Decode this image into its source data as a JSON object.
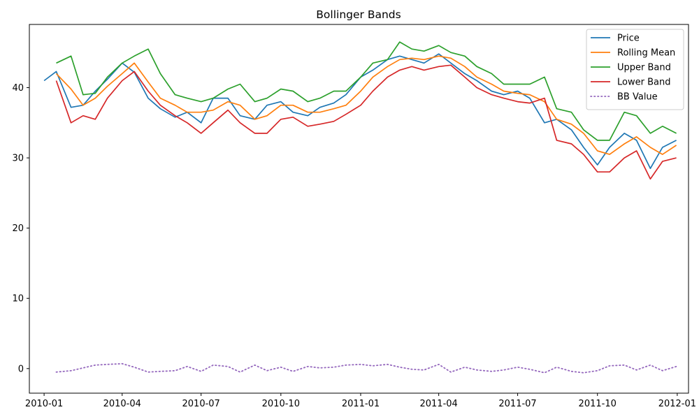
{
  "chart_data": {
    "type": "line",
    "title": "Bollinger Bands",
    "xlabel": "",
    "ylabel": "",
    "xlim": [
      "2009-12-15",
      "2012-01-14"
    ],
    "ylim": [
      -3.5,
      49
    ],
    "x_ticks": [
      "2010-01",
      "2010-04",
      "2010-07",
      "2010-10",
      "2011-01",
      "2011-04",
      "2011-07",
      "2011-10",
      "2012-01"
    ],
    "y_ticks": [
      0,
      10,
      20,
      30,
      40
    ],
    "grid": false,
    "legend": "top-right",
    "x": [
      "2010-01-01",
      "2010-01-15",
      "2010-02-01",
      "2010-02-15",
      "2010-03-01",
      "2010-03-15",
      "2010-04-01",
      "2010-04-15",
      "2010-05-01",
      "2010-05-15",
      "2010-06-01",
      "2010-06-15",
      "2010-07-01",
      "2010-07-15",
      "2010-08-01",
      "2010-08-15",
      "2010-09-01",
      "2010-09-15",
      "2010-10-01",
      "2010-10-15",
      "2010-11-01",
      "2010-11-15",
      "2010-12-01",
      "2010-12-15",
      "2011-01-01",
      "2011-01-15",
      "2011-02-01",
      "2011-02-15",
      "2011-03-01",
      "2011-03-15",
      "2011-04-01",
      "2011-04-15",
      "2011-05-01",
      "2011-05-15",
      "2011-06-01",
      "2011-06-15",
      "2011-07-01",
      "2011-07-15",
      "2011-08-01",
      "2011-08-15",
      "2011-09-01",
      "2011-09-15",
      "2011-10-01",
      "2011-10-15",
      "2011-11-01",
      "2011-11-15",
      "2011-12-01",
      "2011-12-15",
      "2011-12-31"
    ],
    "series": [
      {
        "name": "Price",
        "color": "#1f77b4",
        "style": "solid",
        "values": [
          41.0,
          42.3,
          37.2,
          37.5,
          39.5,
          41.2,
          43.5,
          42.2,
          38.5,
          37.0,
          35.8,
          36.5,
          35.0,
          38.5,
          38.5,
          36.0,
          35.5,
          37.5,
          38.0,
          36.5,
          36.0,
          37.2,
          37.8,
          39.0,
          41.5,
          42.5,
          44.0,
          44.5,
          44.0,
          43.5,
          44.8,
          43.5,
          42.0,
          41.0,
          39.5,
          39.0,
          39.5,
          38.5,
          35.0,
          35.5,
          34.0,
          31.5,
          29.0,
          31.5,
          33.5,
          32.5,
          28.5,
          31.5,
          32.5
        ]
      },
      {
        "name": "Rolling Mean",
        "color": "#ff7f0e",
        "style": "solid",
        "values": [
          null,
          42.0,
          39.8,
          37.5,
          38.5,
          40.2,
          42.0,
          43.5,
          40.8,
          38.5,
          37.5,
          36.5,
          36.5,
          36.8,
          38.0,
          37.5,
          35.5,
          36.0,
          37.5,
          37.5,
          36.5,
          36.5,
          37.0,
          37.5,
          39.5,
          41.5,
          43.0,
          44.0,
          44.2,
          44.0,
          44.5,
          44.2,
          43.0,
          41.5,
          40.5,
          39.5,
          39.2,
          39.0,
          38.0,
          35.5,
          34.8,
          33.5,
          31.0,
          30.5,
          32.0,
          33.0,
          31.5,
          30.5,
          31.8
        ]
      },
      {
        "name": "Upper Band",
        "color": "#2ca02c",
        "style": "solid",
        "values": [
          null,
          43.5,
          44.5,
          39.0,
          39.2,
          41.5,
          43.5,
          44.5,
          45.5,
          42.0,
          39.0,
          38.5,
          38.0,
          38.5,
          39.8,
          40.5,
          38.0,
          38.5,
          39.8,
          39.5,
          38.0,
          38.5,
          39.5,
          39.5,
          41.5,
          43.5,
          44.0,
          46.5,
          45.5,
          45.2,
          46.0,
          45.0,
          44.5,
          43.0,
          42.0,
          40.5,
          40.5,
          40.5,
          41.5,
          37.0,
          36.5,
          34.0,
          32.5,
          32.5,
          36.5,
          36.0,
          33.5,
          34.5,
          33.5
        ]
      },
      {
        "name": "Lower Band",
        "color": "#d62728",
        "style": "solid",
        "values": [
          null,
          41.0,
          35.0,
          36.0,
          35.5,
          38.5,
          41.0,
          42.3,
          39.5,
          37.5,
          36.0,
          35.0,
          33.5,
          35.0,
          36.8,
          35.0,
          33.5,
          33.5,
          35.5,
          35.8,
          34.5,
          34.8,
          35.2,
          36.2,
          37.5,
          39.5,
          41.5,
          42.5,
          43.0,
          42.5,
          43.0,
          43.2,
          41.5,
          40.0,
          39.0,
          38.5,
          38.0,
          37.8,
          38.5,
          32.5,
          32.0,
          30.5,
          28.0,
          28.0,
          30.0,
          31.0,
          27.0,
          29.5,
          30.0
        ]
      },
      {
        "name": "BB Value",
        "color": "#9467bd",
        "style": "dotted",
        "values": [
          null,
          -0.5,
          -0.3,
          0.1,
          0.5,
          0.6,
          0.7,
          0.2,
          -0.5,
          -0.4,
          -0.3,
          0.3,
          -0.4,
          0.5,
          0.3,
          -0.5,
          0.5,
          -0.3,
          0.2,
          -0.4,
          0.3,
          0.1,
          0.2,
          0.5,
          0.6,
          0.4,
          0.6,
          0.2,
          -0.1,
          -0.2,
          0.6,
          -0.5,
          0.2,
          -0.2,
          -0.4,
          -0.2,
          0.2,
          -0.1,
          -0.6,
          0.2,
          -0.4,
          -0.6,
          -0.3,
          0.4,
          0.5,
          -0.2,
          0.5,
          -0.3,
          0.3
        ]
      }
    ]
  }
}
